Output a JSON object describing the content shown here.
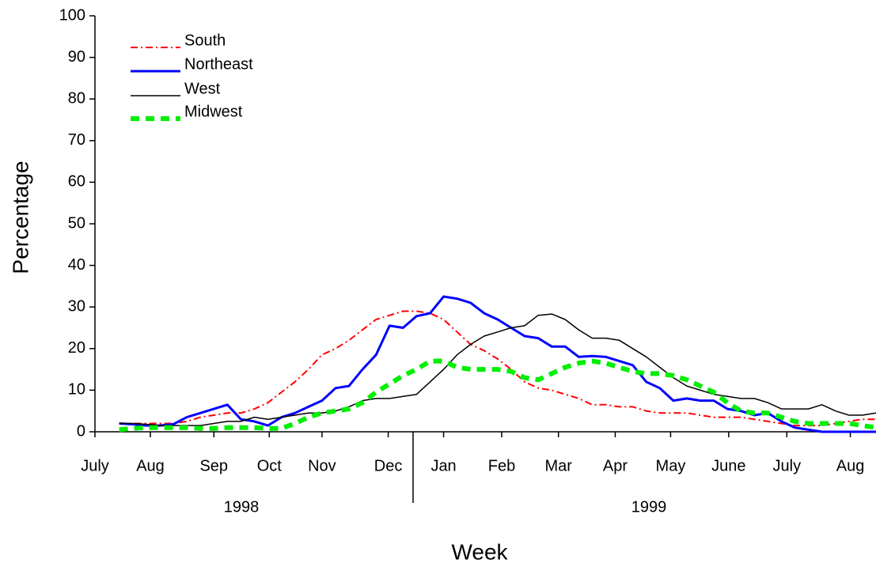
{
  "chart_data": {
    "type": "line",
    "x_title": "Week",
    "y_title": "Percentage",
    "x": [
      0,
      1,
      2,
      3,
      4,
      5,
      6,
      7,
      8,
      9,
      10,
      11,
      12,
      13,
      14,
      15,
      16,
      17,
      18,
      19,
      20,
      21,
      22,
      23,
      24,
      25,
      26,
      27,
      28,
      29,
      30,
      31,
      32,
      33,
      34,
      35,
      36,
      37,
      38,
      39,
      40,
      41,
      42,
      43,
      44,
      45,
      46,
      47,
      48,
      49,
      50,
      51,
      52,
      53,
      54,
      55,
      56
    ],
    "xlim": [
      -1.8,
      56
    ],
    "xticks": [
      {
        "value": -1.8,
        "label": "July"
      },
      {
        "value": 2.3,
        "label": "Aug"
      },
      {
        "value": 7.0,
        "label": "Sep"
      },
      {
        "value": 11.1,
        "label": "Oct"
      },
      {
        "value": 15.0,
        "label": "Nov"
      },
      {
        "value": 19.9,
        "label": "Dec"
      },
      {
        "value": 24.0,
        "label": "Jan"
      },
      {
        "value": 28.3,
        "label": "Feb"
      },
      {
        "value": 32.5,
        "label": "Mar"
      },
      {
        "value": 36.7,
        "label": "Apr"
      },
      {
        "value": 40.8,
        "label": "May"
      },
      {
        "value": 45.1,
        "label": "June"
      },
      {
        "value": 49.4,
        "label": "July"
      },
      {
        "value": 54.1,
        "label": "Aug"
      }
    ],
    "x_groups": [
      "1998",
      "1999"
    ],
    "ylim": [
      0,
      100
    ],
    "yticks": [
      0,
      10,
      20,
      30,
      40,
      50,
      60,
      70,
      80,
      90,
      100
    ],
    "legend": "top-left",
    "series": [
      {
        "name": "South",
        "color": "#ff0000",
        "style": "dashdot",
        "values": [
          2,
          2,
          2,
          2,
          2,
          2.5,
          3.5,
          4,
          4.5,
          4.5,
          5.5,
          7,
          9.5,
          12,
          15,
          18.5,
          20,
          22,
          24.5,
          27,
          28,
          29,
          29,
          28.5,
          27,
          24,
          21,
          19.5,
          17.5,
          15,
          12,
          10.5,
          10,
          9,
          8,
          6.5,
          6.5,
          6,
          6,
          5,
          4.5,
          4.5,
          4.5,
          4,
          3.5,
          3.5,
          3.5,
          3,
          2.5,
          2,
          1.5,
          1.5,
          1.5,
          2,
          2.5,
          3,
          3
        ]
      },
      {
        "name": "Northeast",
        "color": "#0000ff",
        "style": "solid",
        "values": [
          2,
          1.8,
          1.5,
          1.5,
          1.8,
          3.5,
          4.5,
          5.5,
          6.5,
          3,
          2.5,
          1.5,
          3.5,
          4.5,
          6,
          7.5,
          10.5,
          11,
          15,
          18.5,
          25.5,
          25,
          27.8,
          28.5,
          32.5,
          32,
          31,
          28.5,
          27,
          25,
          23,
          22.5,
          20.5,
          20.5,
          18,
          18.2,
          18,
          17,
          16,
          12,
          10.5,
          7.5,
          8,
          7.5,
          7.5,
          5.5,
          5,
          4,
          4.5,
          2.5,
          1,
          0.5,
          0,
          0,
          0,
          0,
          0
        ]
      },
      {
        "name": "West",
        "color": "#000000",
        "style": "thin",
        "values": [
          2,
          2,
          1.8,
          1.5,
          1.5,
          1.5,
          1.5,
          2,
          2.5,
          2.5,
          3.5,
          3,
          3.5,
          4,
          4.5,
          4.5,
          5,
          6,
          7.5,
          8,
          8,
          8.5,
          9,
          12,
          15,
          18.5,
          21,
          23,
          24,
          25,
          25.5,
          28,
          28.3,
          27,
          24.5,
          22.5,
          22.5,
          22,
          20,
          18,
          15.5,
          13,
          11,
          10,
          9,
          8.5,
          8,
          8,
          7,
          5.5,
          5.5,
          5.5,
          6.5,
          5,
          4,
          4,
          4.5
        ]
      },
      {
        "name": "Midwest",
        "color": "#00ee00",
        "style": "dashed",
        "values": [
          0.5,
          0.8,
          1,
          1,
          1,
          1,
          0.8,
          0.8,
          1,
          1,
          1,
          0.8,
          0.8,
          2,
          3.5,
          4.5,
          5,
          5.5,
          7,
          9.5,
          11.5,
          13.5,
          15,
          17,
          17,
          15.5,
          15,
          15,
          15,
          14.5,
          13,
          12.5,
          14,
          15.5,
          16.5,
          17,
          16.5,
          15.5,
          14.5,
          14,
          14,
          13.5,
          12.5,
          11,
          9.5,
          7,
          5,
          4.5,
          4.5,
          3.5,
          2.5,
          2,
          2,
          2,
          2,
          1.5,
          1
        ]
      }
    ]
  }
}
